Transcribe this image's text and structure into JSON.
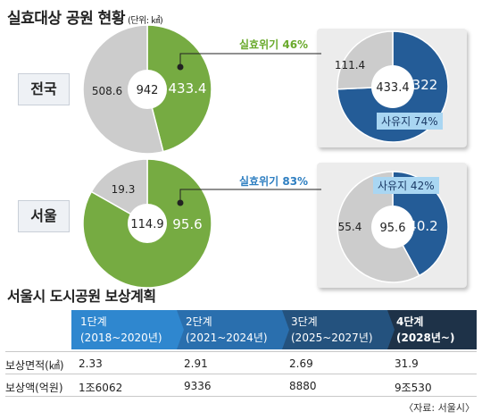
{
  "title": "실효대상 공원 현황",
  "title_unit": "(단위: ㎢)",
  "rows": {
    "national": {
      "label": "전국",
      "tag": "실효위기 46%",
      "sub_tag": "사유지 74%"
    },
    "seoul": {
      "label": "서울",
      "tag": "실효위기 83%",
      "sub_tag": "사유지 42%"
    }
  },
  "chart_data": [
    {
      "type": "pie",
      "region": "전국",
      "center_label": "942",
      "slices": [
        {
          "label": "433.4",
          "value": 433.4
        },
        {
          "label": "508.6",
          "value": 508.6
        }
      ]
    },
    {
      "type": "pie",
      "region": "전국",
      "center_label": "433.4",
      "slices": [
        {
          "label": "322",
          "value": 322
        },
        {
          "label": "111.4",
          "value": 111.4
        }
      ]
    },
    {
      "type": "pie",
      "region": "서울",
      "center_label": "114.9",
      "slices": [
        {
          "label": "95.6",
          "value": 95.6
        },
        {
          "label": "19.3",
          "value": 19.3
        }
      ]
    },
    {
      "type": "pie",
      "region": "서울",
      "center_label": "95.6",
      "slices": [
        {
          "label": "40.2",
          "value": 40.2
        },
        {
          "label": "55.4",
          "value": 55.4
        }
      ]
    },
    {
      "type": "table",
      "title": "서울시 도시공원 보상계획",
      "columns": [
        {
          "stage": "1단계",
          "period": "(2018~2020년)"
        },
        {
          "stage": "2단계",
          "period": "(2021~2024년)"
        },
        {
          "stage": "3단계",
          "period": "(2025~2027년)"
        },
        {
          "stage": "4단계",
          "period": "(2028년~)"
        }
      ],
      "rows": [
        {
          "label": "보상면적(㎢)",
          "values": [
            "2.33",
            "2.91",
            "2.69",
            "31.9"
          ]
        },
        {
          "label": "보상액(억원)",
          "values": [
            "1조6062",
            "9336",
            "8880",
            "9조530"
          ]
        }
      ]
    }
  ],
  "source": "〈자료: 서울시〉",
  "colors": {
    "green": "#76ab42",
    "gray": "#cccccc",
    "navy": "#245c97",
    "light_blue": "#a9d6f2",
    "stage_blue": "#2f87cf",
    "stage_dark": "#1e3248"
  }
}
